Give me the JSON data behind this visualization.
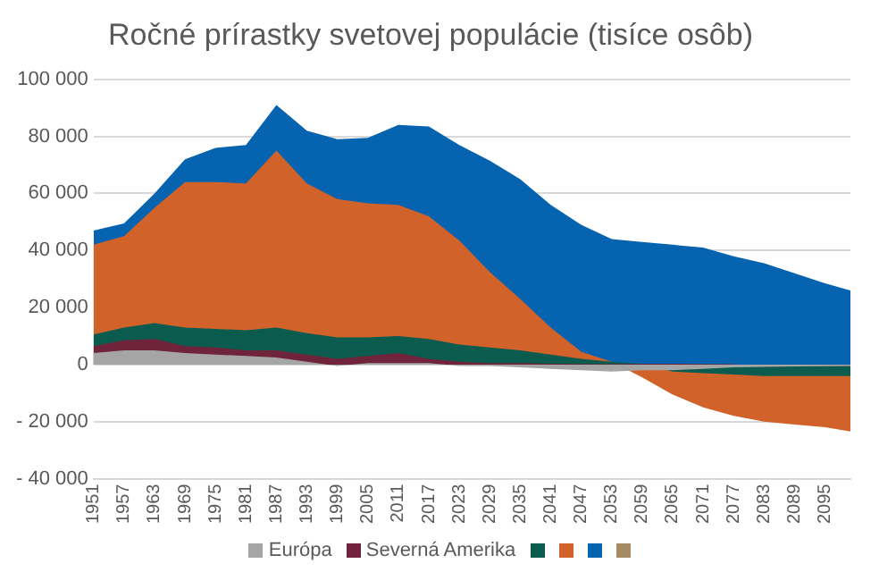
{
  "chart_data": {
    "type": "area",
    "title": "Ročné prírastky svetovej populácie (tisíce osôb)",
    "x": [
      1951,
      1957,
      1963,
      1969,
      1975,
      1981,
      1987,
      1993,
      1999,
      2005,
      2011,
      2017,
      2023,
      2029,
      2035,
      2041,
      2047,
      2053,
      2059,
      2065,
      2071,
      2077,
      2083,
      2089,
      2095,
      2100
    ],
    "series": [
      {
        "name": "Európa",
        "color": "#a5a5a5",
        "values": [
          4000,
          5000,
          5000,
          4000,
          3500,
          3000,
          2500,
          1000,
          -500,
          500,
          500,
          500,
          -500,
          -500,
          -1000,
          -1500,
          -2000,
          -2500,
          -2000,
          -2000,
          -1500,
          -1000,
          -800,
          -700,
          -600,
          -500
        ]
      },
      {
        "name": "Severná Amerika",
        "color": "#70243c",
        "values": [
          2500,
          3500,
          4000,
          2500,
          2500,
          2000,
          2500,
          2500,
          2500,
          2500,
          3500,
          1500,
          1500,
          1000,
          1500,
          1800,
          2200,
          2600,
          2300,
          2300,
          1700,
          1100,
          0,
          0,
          0,
          0
        ]
      },
      {
        "color": "#0b5c4f",
        "values": [
          4000,
          4500,
          5500,
          6500,
          6500,
          7000,
          8000,
          7500,
          7500,
          6500,
          6000,
          7000,
          6000,
          5500,
          4500,
          3200,
          1800,
          900,
          0,
          -2800,
          -3200,
          -3600,
          -3200,
          -3300,
          -3400,
          -3500
        ]
      },
      {
        "color": "#d0622a",
        "values": [
          31500,
          32000,
          40500,
          51000,
          51500,
          51500,
          62000,
          52500,
          48500,
          47000,
          46000,
          43000,
          36500,
          26500,
          18000,
          9500,
          2500,
          0,
          -4800,
          -8000,
          -12000,
          -14500,
          -16000,
          -17000,
          -18000,
          -19500
        ]
      },
      {
        "color": "#0563af",
        "values": [
          5000,
          4500,
          5000,
          8000,
          12000,
          13500,
          16000,
          18500,
          21000,
          23000,
          28000,
          31500,
          33500,
          39000,
          42000,
          43000,
          44500,
          43000,
          47500,
          52500,
          56000,
          56000,
          55500,
          53000,
          50500,
          49500
        ]
      },
      {
        "color": "#a68a64",
        "values": [
          null,
          null,
          null,
          null,
          null,
          null,
          null,
          null,
          null,
          null,
          null,
          null,
          null,
          null,
          null,
          null,
          null,
          null,
          null,
          null,
          null,
          null,
          null,
          null,
          null,
          null
        ]
      }
    ],
    "stacked": true,
    "xlim": [
      1951,
      2100
    ],
    "xticks": [
      1951,
      1957,
      1963,
      1969,
      1975,
      1981,
      1987,
      1993,
      1999,
      2005,
      2011,
      2017,
      2023,
      2029,
      2035,
      2041,
      2047,
      2053,
      2059,
      2065,
      2071,
      2077,
      2083,
      2089,
      2095
    ],
    "ylim": [
      -40000,
      100000
    ],
    "yticks": [
      {
        "value": -40000,
        "label": "- 40 000"
      },
      {
        "value": -20000,
        "label": "- 20 000"
      },
      0,
      {
        "value": 20000,
        "label": "20 000"
      },
      {
        "value": 40000,
        "label": "40 000"
      },
      {
        "value": 60000,
        "label": "60 000"
      },
      {
        "value": 80000,
        "label": "80 000"
      },
      {
        "value": 100000,
        "label": "100 000"
      }
    ],
    "grid": "y",
    "legend": "bottom"
  }
}
